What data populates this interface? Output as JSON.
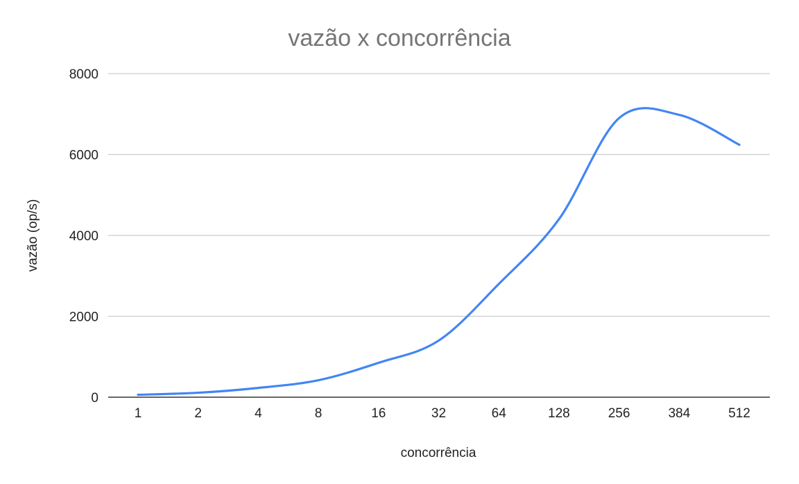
{
  "chart_data": {
    "type": "line",
    "title": "vazão x concorrência",
    "xlabel": "concorrência",
    "ylabel": "vazão (op/s)",
    "categories": [
      "1",
      "2",
      "4",
      "8",
      "16",
      "32",
      "64",
      "128",
      "256",
      "384",
      "512"
    ],
    "series": [
      {
        "values": [
          60,
          110,
          230,
          420,
          850,
          1400,
          2800,
          4400,
          6900,
          6980,
          6240
        ]
      }
    ],
    "ylim": [
      0,
      8000
    ],
    "yticks": [
      "0",
      "2000",
      "4000",
      "6000",
      "8000"
    ],
    "grid": true,
    "line_color": "#4285f4",
    "smooth": true
  }
}
